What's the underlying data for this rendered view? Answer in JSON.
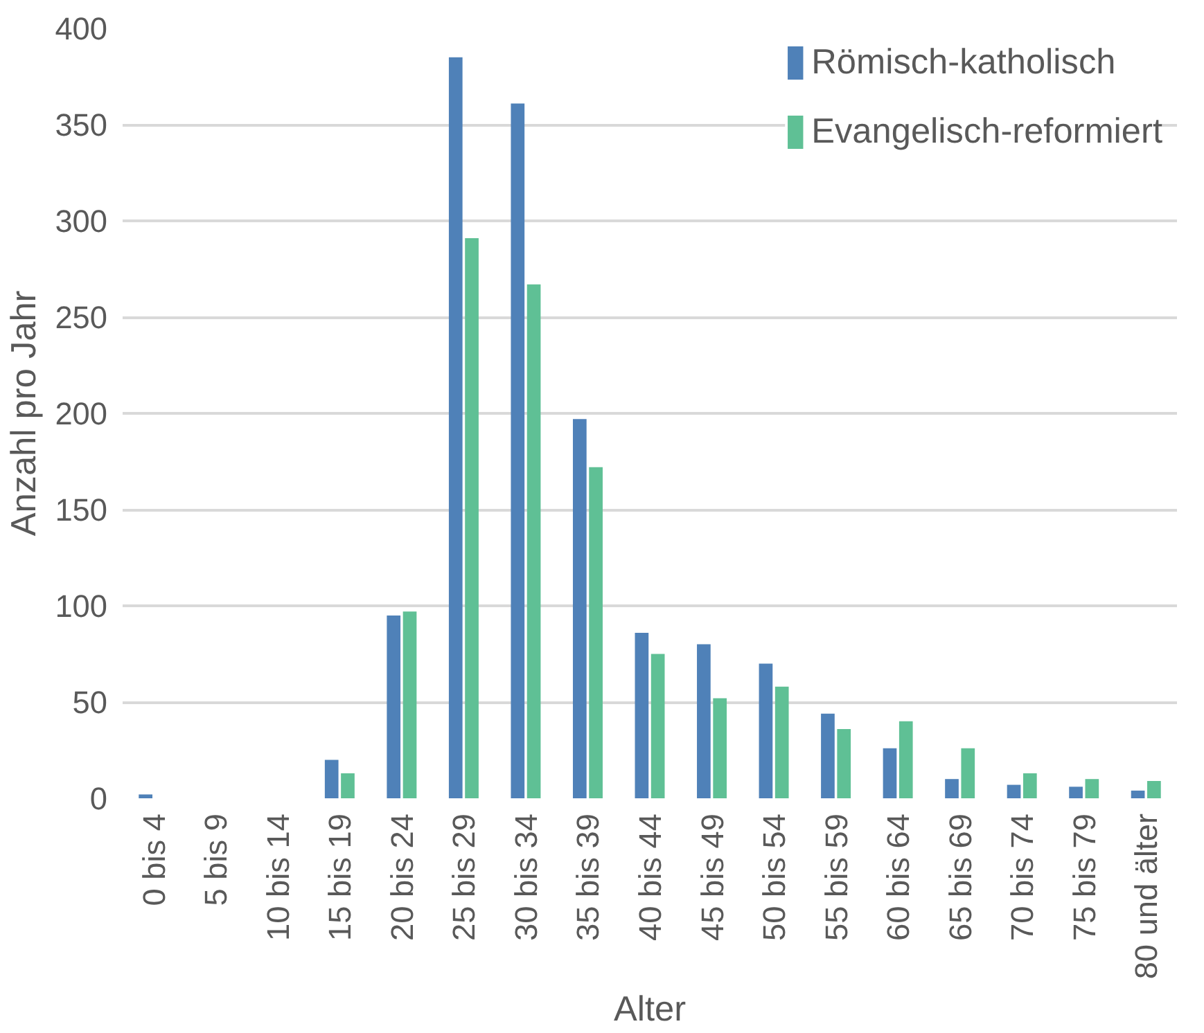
{
  "chart_data": {
    "type": "bar",
    "xlabel": "Alter",
    "ylabel": "Anzahl pro Jahr",
    "categories": [
      "0 bis 4",
      "5 bis 9",
      "10 bis 14",
      "15 bis 19",
      "20 bis 24",
      "25 bis 29",
      "30 bis 34",
      "35 bis 39",
      "40 bis 44",
      "45 bis 49",
      "50 bis 54",
      "55 bis 59",
      "60 bis 64",
      "65 bis 69",
      "70 bis 74",
      "75 bis 79",
      "80 und älter"
    ],
    "series": [
      {
        "name": "Römisch-katholisch",
        "color": "#4f81b8",
        "values": [
          2,
          0,
          0,
          20,
          95,
          385,
          361,
          197,
          86,
          80,
          70,
          44,
          26,
          10,
          7,
          6,
          4
        ]
      },
      {
        "name": "Evangelisch-reformiert",
        "color": "#5fc095",
        "values": [
          0,
          0,
          0,
          13,
          97,
          291,
          267,
          172,
          75,
          52,
          58,
          36,
          40,
          26,
          13,
          10,
          9
        ]
      }
    ],
    "ylim": [
      0,
      400
    ],
    "yticks": [
      0,
      50,
      100,
      150,
      200,
      250,
      300,
      350,
      400
    ],
    "grid": "y",
    "legend": "top right"
  }
}
